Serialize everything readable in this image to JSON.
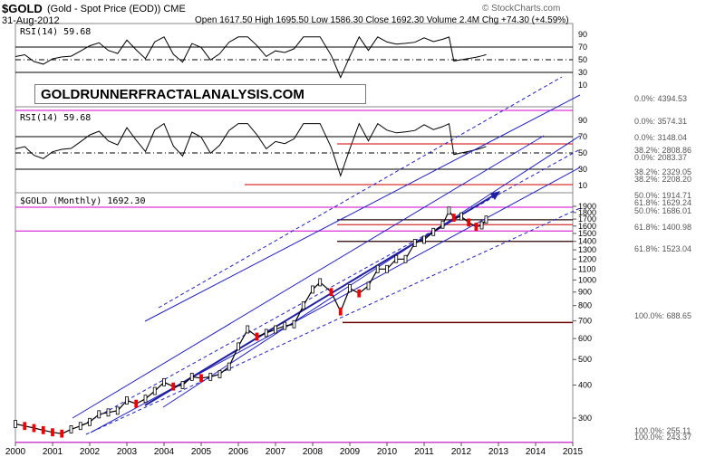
{
  "header": {
    "symbol": "$GOLD",
    "description": "(Gold - Spot Price (EOD)) CME",
    "date": "31-Aug-2012",
    "quote": "Open 1617.50  High 1695.50  Low 1586.30  Close 1692.30  Volume 2.4M  Chg +74.30 (+4.59%)",
    "watermark": "© StockCharts.com"
  },
  "panels": {
    "rsi1_label": "RSI(14) 59.68",
    "rsi2_label": "RSI(14) 59.68",
    "price_label": "$GOLD (Monthly) 1692.30",
    "brand_box": "GOLDRUNNERFRACTALANALYSIS.COM"
  },
  "chart_data": {
    "type": "line",
    "title": "$GOLD (Gold - Spot Price (EOD)) CME",
    "x_years": [
      "2000",
      "2001",
      "2002",
      "2003",
      "2004",
      "2005",
      "2006",
      "2007",
      "2008",
      "2009",
      "2010",
      "2011",
      "2012",
      "2013",
      "2014",
      "2015"
    ],
    "price_axis": {
      "ticks": [
        300,
        400,
        500,
        600,
        700,
        800,
        900,
        1000,
        1100,
        1200,
        1300,
        1400,
        1500,
        1600,
        1700,
        1800,
        1900
      ],
      "scale": "log"
    },
    "rsi_axis": {
      "ticks": [
        10,
        30,
        50,
        70,
        90
      ]
    },
    "series": [
      {
        "values": [
          [
            2000.0,
            285
          ],
          [
            2000.25,
            280
          ],
          [
            2000.5,
            275
          ],
          [
            2000.75,
            270
          ],
          [
            2001.0,
            265
          ],
          [
            2001.25,
            262
          ],
          [
            2001.5,
            272
          ],
          [
            2001.75,
            280
          ],
          [
            2002.0,
            290
          ],
          [
            2002.25,
            310
          ],
          [
            2002.5,
            315
          ],
          [
            2002.75,
            320
          ],
          [
            2003.0,
            350
          ],
          [
            2003.25,
            340
          ],
          [
            2003.5,
            355
          ],
          [
            2003.75,
            380
          ],
          [
            2004.0,
            410
          ],
          [
            2004.25,
            395
          ],
          [
            2004.5,
            400
          ],
          [
            2004.75,
            430
          ],
          [
            2005.0,
            425
          ],
          [
            2005.25,
            430
          ],
          [
            2005.5,
            440
          ],
          [
            2005.75,
            470
          ],
          [
            2006.0,
            560
          ],
          [
            2006.25,
            650
          ],
          [
            2006.5,
            610
          ],
          [
            2006.75,
            630
          ],
          [
            2007.0,
            650
          ],
          [
            2007.25,
            670
          ],
          [
            2007.5,
            680
          ],
          [
            2007.75,
            800
          ],
          [
            2008.0,
            920
          ],
          [
            2008.2,
            980
          ],
          [
            2008.5,
            900
          ],
          [
            2008.75,
            760
          ],
          [
            2009.0,
            930
          ],
          [
            2009.25,
            890
          ],
          [
            2009.5,
            950
          ],
          [
            2009.75,
            1100
          ],
          [
            2010.0,
            1100
          ],
          [
            2010.25,
            1200
          ],
          [
            2010.5,
            1200
          ],
          [
            2010.75,
            1380
          ],
          [
            2011.0,
            1420
          ],
          [
            2011.25,
            1520
          ],
          [
            2011.5,
            1620
          ],
          [
            2011.67,
            1830
          ],
          [
            2011.8,
            1720
          ],
          [
            2012.0,
            1740
          ],
          [
            2012.2,
            1650
          ],
          [
            2012.4,
            1590
          ],
          [
            2012.55,
            1610
          ],
          [
            2012.67,
            1692
          ]
        ]
      }
    ],
    "fib_labels_right": [
      "0.0%: 4394.53",
      "0.0%: 3574.31",
      "0.0%: 3148.04",
      "38.2%: 2808.86",
      "0.0%: 2083.37",
      "38.2%: 2208.20",
      "38.2%: 2329.05",
      "50.0%: 1914.71",
      "61.8%: 1629.24",
      "61.8%: 1523.04",
      "50.0%: 1686.01",
      "61.8%: 1400.98",
      "100.0%: 688.65",
      "100.0%: 255.11",
      "100.0%: 243.37"
    ],
    "annotations": [
      "channel lines",
      "arrow projection up"
    ]
  }
}
